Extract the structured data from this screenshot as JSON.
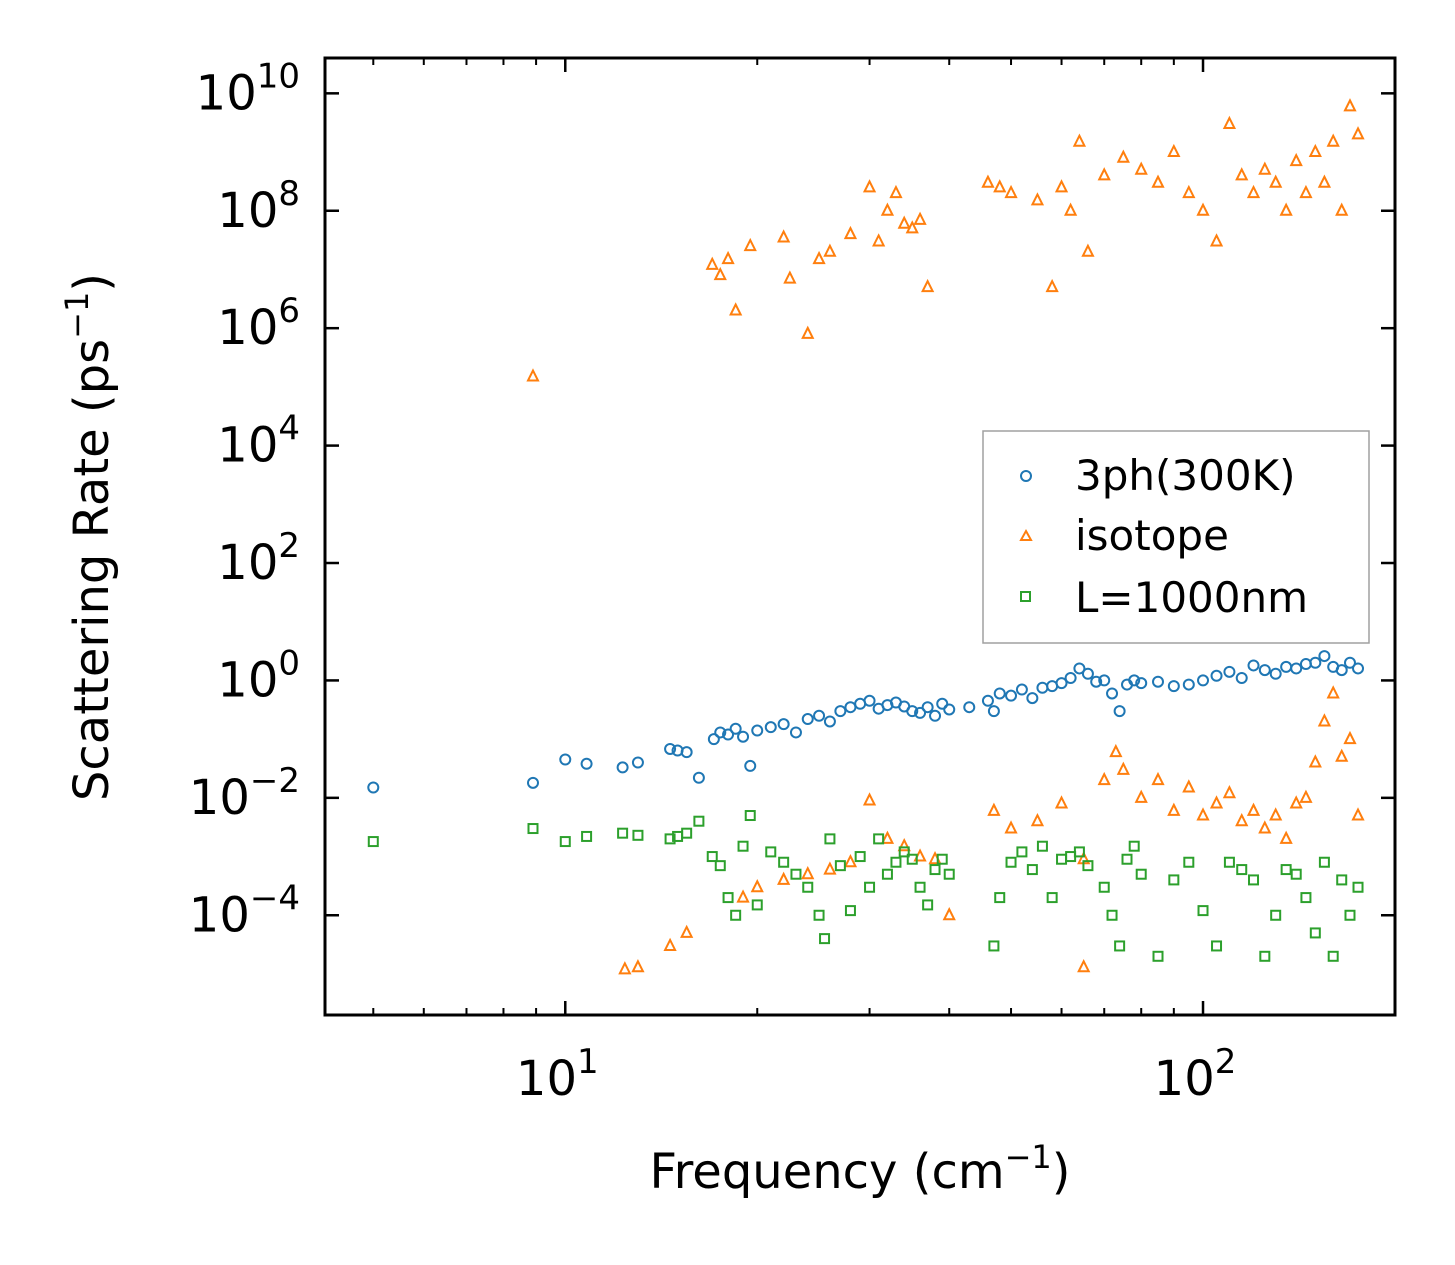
{
  "chart_data": {
    "type": "scatter",
    "title": "",
    "xlabel": "Frequency (cm",
    "xlabel_sup": "−1",
    "xlabel_end": ")",
    "ylabel": "Scattering Rate (ps",
    "ylabel_sup": "−1",
    "ylabel_end": ")",
    "xscale": "log",
    "yscale": "log",
    "xlim": [
      4.2,
      200
    ],
    "ylim": [
      2e-06,
      40000000000.0
    ],
    "x_ticks": [
      {
        "value": 10,
        "base": "10",
        "exp": "1"
      },
      {
        "value": 100,
        "base": "10",
        "exp": "2"
      }
    ],
    "y_ticks": [
      {
        "value": 10000000000.0,
        "base": "10",
        "exp": "10"
      },
      {
        "value": 100000000.0,
        "base": "10",
        "exp": "8"
      },
      {
        "value": 1000000.0,
        "base": "10",
        "exp": "6"
      },
      {
        "value": 10000.0,
        "base": "10",
        "exp": "4"
      },
      {
        "value": 100.0,
        "base": "10",
        "exp": "2"
      },
      {
        "value": 1,
        "base": "10",
        "exp": "0"
      },
      {
        "value": 0.01,
        "base": "10",
        "exp": "−2"
      },
      {
        "value": 0.0001,
        "base": "10",
        "exp": "−4"
      }
    ],
    "legend": {
      "position": "center-right"
    },
    "series": [
      {
        "name": "3ph(300K)",
        "marker": "circle",
        "color": "#1f77b4",
        "points": [
          [
            5.0,
            0.015
          ],
          [
            8.9,
            0.018
          ],
          [
            10.0,
            0.045
          ],
          [
            10.8,
            0.038
          ],
          [
            12.3,
            0.033
          ],
          [
            13.0,
            0.04
          ],
          [
            14.6,
            0.068
          ],
          [
            15.0,
            0.064
          ],
          [
            15.5,
            0.06
          ],
          [
            16.2,
            0.022
          ],
          [
            17.1,
            0.1
          ],
          [
            17.5,
            0.13
          ],
          [
            18.0,
            0.12
          ],
          [
            18.5,
            0.15
          ],
          [
            19.0,
            0.11
          ],
          [
            19.5,
            0.035
          ],
          [
            20.0,
            0.14
          ],
          [
            21.0,
            0.16
          ],
          [
            22.0,
            0.18
          ],
          [
            23.0,
            0.13
          ],
          [
            24.0,
            0.22
          ],
          [
            25.0,
            0.25
          ],
          [
            26.0,
            0.2
          ],
          [
            27.0,
            0.3
          ],
          [
            28.0,
            0.35
          ],
          [
            29.0,
            0.4
          ],
          [
            30.0,
            0.45
          ],
          [
            31.0,
            0.33
          ],
          [
            32.0,
            0.38
          ],
          [
            33.0,
            0.42
          ],
          [
            34.0,
            0.36
          ],
          [
            35.0,
            0.3
          ],
          [
            36.0,
            0.28
          ],
          [
            37.0,
            0.35
          ],
          [
            38.0,
            0.25
          ],
          [
            39.0,
            0.4
          ],
          [
            40.0,
            0.32
          ],
          [
            43.0,
            0.35
          ],
          [
            46.0,
            0.45
          ],
          [
            47.0,
            0.3
          ],
          [
            48.0,
            0.6
          ],
          [
            50.0,
            0.55
          ],
          [
            52.0,
            0.7
          ],
          [
            54.0,
            0.5
          ],
          [
            56.0,
            0.75
          ],
          [
            58.0,
            0.8
          ],
          [
            60.0,
            0.9
          ],
          [
            62.0,
            1.1
          ],
          [
            64.0,
            1.6
          ],
          [
            66.0,
            1.3
          ],
          [
            68.0,
            0.95
          ],
          [
            70.0,
            1.0
          ],
          [
            72.0,
            0.6
          ],
          [
            74.0,
            0.3
          ],
          [
            76.0,
            0.85
          ],
          [
            78.0,
            1.0
          ],
          [
            80.0,
            0.9
          ],
          [
            85.0,
            0.95
          ],
          [
            90.0,
            0.8
          ],
          [
            95.0,
            0.85
          ],
          [
            100.0,
            1.0
          ],
          [
            105.0,
            1.2
          ],
          [
            110.0,
            1.4
          ],
          [
            115.0,
            1.1
          ],
          [
            120.0,
            1.8
          ],
          [
            125.0,
            1.5
          ],
          [
            130.0,
            1.3
          ],
          [
            135.0,
            1.7
          ],
          [
            140.0,
            1.6
          ],
          [
            145.0,
            1.9
          ],
          [
            150.0,
            2.0
          ],
          [
            155.0,
            2.6
          ],
          [
            160.0,
            1.7
          ],
          [
            165.0,
            1.5
          ],
          [
            170.0,
            2.0
          ],
          [
            175.0,
            1.6
          ]
        ]
      },
      {
        "name": "isotope",
        "marker": "triangle",
        "color": "#ff7f0e",
        "points": [
          [
            8.9,
            150000
          ],
          [
            12.4,
            1.2e-05
          ],
          [
            13.0,
            1.3e-05
          ],
          [
            14.6,
            3e-05
          ],
          [
            15.5,
            5e-05
          ],
          [
            17.0,
            12000000
          ],
          [
            17.5,
            8000000
          ],
          [
            18.0,
            15000000
          ],
          [
            18.5,
            2000000
          ],
          [
            19.5,
            25000000
          ],
          [
            22.0,
            35000000
          ],
          [
            22.5,
            7000000
          ],
          [
            24.0,
            800000
          ],
          [
            25.0,
            15000000
          ],
          [
            26.0,
            20000000
          ],
          [
            28.0,
            40000000
          ],
          [
            30.0,
            250000000
          ],
          [
            31.0,
            30000000
          ],
          [
            32.0,
            100000000
          ],
          [
            33.0,
            200000000
          ],
          [
            34.0,
            60000000
          ],
          [
            35.0,
            50000000
          ],
          [
            36.0,
            70000000
          ],
          [
            37.0,
            5000000
          ],
          [
            46.0,
            300000000
          ],
          [
            48.0,
            250000000
          ],
          [
            50.0,
            200000000
          ],
          [
            55.0,
            150000000
          ],
          [
            58.0,
            5000000
          ],
          [
            60.0,
            250000000
          ],
          [
            62.0,
            100000000
          ],
          [
            64.0,
            1500000000
          ],
          [
            66.0,
            20000000
          ],
          [
            70.0,
            400000000
          ],
          [
            75.0,
            800000000
          ],
          [
            80.0,
            500000000
          ],
          [
            85.0,
            300000000
          ],
          [
            90.0,
            1000000000
          ],
          [
            95.0,
            200000000
          ],
          [
            100.0,
            100000000
          ],
          [
            105.0,
            30000000
          ],
          [
            110.0,
            3000000000
          ],
          [
            115.0,
            400000000
          ],
          [
            120.0,
            200000000
          ],
          [
            125.0,
            500000000
          ],
          [
            130.0,
            300000000
          ],
          [
            135.0,
            100000000
          ],
          [
            140.0,
            700000000
          ],
          [
            145.0,
            200000000
          ],
          [
            150.0,
            1000000000
          ],
          [
            155.0,
            300000000
          ],
          [
            160.0,
            1500000000
          ],
          [
            165.0,
            100000000
          ],
          [
            170.0,
            6000000000
          ],
          [
            175.0,
            2000000000
          ],
          [
            19.0,
            0.0002
          ],
          [
            20.0,
            0.0003
          ],
          [
            22.0,
            0.0004
          ],
          [
            24.0,
            0.0005
          ],
          [
            26.0,
            0.0006
          ],
          [
            28.0,
            0.0008
          ],
          [
            30.0,
            0.009
          ],
          [
            32.0,
            0.002
          ],
          [
            34.0,
            0.0015
          ],
          [
            36.0,
            0.001
          ],
          [
            38.0,
            0.0009
          ],
          [
            40.0,
            0.0001
          ],
          [
            47.0,
            0.006
          ],
          [
            50.0,
            0.003
          ],
          [
            55.0,
            0.004
          ],
          [
            60.0,
            0.008
          ],
          [
            65.0,
            0.0009
          ],
          [
            70.0,
            0.02
          ],
          [
            73.0,
            0.06
          ],
          [
            75.0,
            0.03
          ],
          [
            80.0,
            0.01
          ],
          [
            85.0,
            0.02
          ],
          [
            90.0,
            0.006
          ],
          [
            95.0,
            0.015
          ],
          [
            100.0,
            0.005
          ],
          [
            105.0,
            0.008
          ],
          [
            110.0,
            0.012
          ],
          [
            115.0,
            0.004
          ],
          [
            120.0,
            0.006
          ],
          [
            125.0,
            0.003
          ],
          [
            130.0,
            0.005
          ],
          [
            135.0,
            0.002
          ],
          [
            140.0,
            0.008
          ],
          [
            145.0,
            0.01
          ],
          [
            150.0,
            0.04
          ],
          [
            155.0,
            0.2
          ],
          [
            160.0,
            0.6
          ],
          [
            165.0,
            0.05
          ],
          [
            170.0,
            0.1
          ],
          [
            175.0,
            0.005
          ],
          [
            65.0,
            1.3e-05
          ]
        ]
      },
      {
        "name": "L=1000nm",
        "marker": "square",
        "color": "#2ca02c",
        "points": [
          [
            5.0,
            0.0018
          ],
          [
            8.9,
            0.003
          ],
          [
            10.0,
            0.0018
          ],
          [
            10.8,
            0.0022
          ],
          [
            12.3,
            0.0025
          ],
          [
            13.0,
            0.0023
          ],
          [
            14.6,
            0.002
          ],
          [
            15.0,
            0.0022
          ],
          [
            15.5,
            0.0025
          ],
          [
            16.2,
            0.004
          ],
          [
            17.0,
            0.001
          ],
          [
            17.5,
            0.0007
          ],
          [
            18.0,
            0.0002
          ],
          [
            18.5,
            0.0001
          ],
          [
            19.0,
            0.0015
          ],
          [
            19.5,
            0.005
          ],
          [
            20.0,
            0.00015
          ],
          [
            21.0,
            0.0012
          ],
          [
            22.0,
            0.0008
          ],
          [
            23.0,
            0.0005
          ],
          [
            24.0,
            0.0003
          ],
          [
            25.0,
            0.0001
          ],
          [
            25.5,
            4e-05
          ],
          [
            26.0,
            0.002
          ],
          [
            27.0,
            0.0007
          ],
          [
            28.0,
            0.00012
          ],
          [
            29.0,
            0.001
          ],
          [
            30.0,
            0.0003
          ],
          [
            31.0,
            0.002
          ],
          [
            32.0,
            0.0005
          ],
          [
            33.0,
            0.0008
          ],
          [
            34.0,
            0.0012
          ],
          [
            35.0,
            0.0009
          ],
          [
            36.0,
            0.0003
          ],
          [
            37.0,
            0.00015
          ],
          [
            38.0,
            0.0006
          ],
          [
            39.0,
            0.0009
          ],
          [
            40.0,
            0.0005
          ],
          [
            47.0,
            3e-05
          ],
          [
            48.0,
            0.0002
          ],
          [
            50.0,
            0.0008
          ],
          [
            52.0,
            0.0012
          ],
          [
            54.0,
            0.0006
          ],
          [
            56.0,
            0.0015
          ],
          [
            58.0,
            0.0002
          ],
          [
            60.0,
            0.0009
          ],
          [
            62.0,
            0.001
          ],
          [
            64.0,
            0.0012
          ],
          [
            66.0,
            0.0007
          ],
          [
            70.0,
            0.0003
          ],
          [
            72.0,
            0.0001
          ],
          [
            74.0,
            3e-05
          ],
          [
            76.0,
            0.0009
          ],
          [
            78.0,
            0.0015
          ],
          [
            80.0,
            0.0005
          ],
          [
            85.0,
            2e-05
          ],
          [
            90.0,
            0.0004
          ],
          [
            95.0,
            0.0008
          ],
          [
            100.0,
            0.00012
          ],
          [
            105.0,
            3e-05
          ],
          [
            110.0,
            0.0008
          ],
          [
            115.0,
            0.0006
          ],
          [
            120.0,
            0.0004
          ],
          [
            125.0,
            2e-05
          ],
          [
            130.0,
            0.0001
          ],
          [
            135.0,
            0.0006
          ],
          [
            140.0,
            0.0005
          ],
          [
            145.0,
            0.0002
          ],
          [
            150.0,
            5e-05
          ],
          [
            155.0,
            0.0008
          ],
          [
            160.0,
            2e-05
          ],
          [
            165.0,
            0.0004
          ],
          [
            170.0,
            0.0001
          ],
          [
            175.0,
            0.0003
          ]
        ]
      }
    ]
  }
}
